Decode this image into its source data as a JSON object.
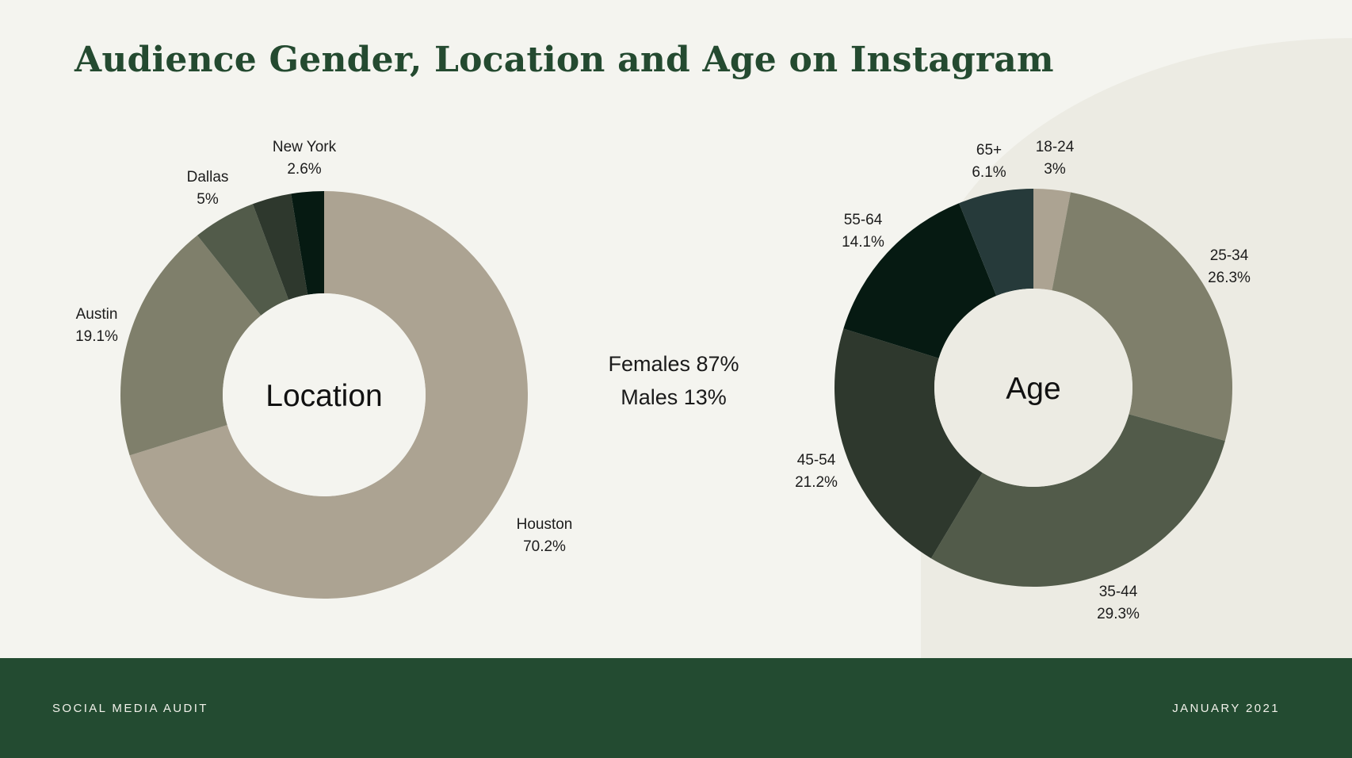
{
  "title": "Audience Gender, Location and Age on Instagram",
  "gender": {
    "female": "Females 87%",
    "male": "Males 13%"
  },
  "footer": {
    "left": "SOCIAL MEDIA AUDIT",
    "right": "JANUARY 2021"
  },
  "colors": {
    "background": "#f4f4ef",
    "accent_arc": "#ecebe3",
    "title": "#244a30",
    "footer": "#234b31"
  },
  "chart_data": [
    {
      "type": "pie",
      "center_label": "Location",
      "slices": [
        {
          "label": "Houston",
          "value_label": "70.2%",
          "value": 70.2,
          "color": "#aca392"
        },
        {
          "label": "Austin",
          "value_label": "19.1%",
          "value": 19.1,
          "color": "#7f7f6b"
        },
        {
          "label": "Dallas",
          "value_label": "5%",
          "value": 5.0,
          "color": "#525b4a"
        },
        {
          "label": "",
          "value_label": "",
          "value": 3.1,
          "color": "#2e382d"
        },
        {
          "label": "New York",
          "value_label": "2.6%",
          "value": 2.6,
          "color": "#061a12"
        }
      ]
    },
    {
      "type": "pie",
      "center_label": "Age",
      "slices": [
        {
          "label": "18-24",
          "value_label": "3%",
          "value": 3.0,
          "color": "#aca392"
        },
        {
          "label": "25-34",
          "value_label": "26.3%",
          "value": 26.3,
          "color": "#7f7f6b"
        },
        {
          "label": "35-44",
          "value_label": "29.3%",
          "value": 29.3,
          "color": "#525b4a"
        },
        {
          "label": "45-54",
          "value_label": "21.2%",
          "value": 21.2,
          "color": "#2e382d"
        },
        {
          "label": "55-64",
          "value_label": "14.1%",
          "value": 14.1,
          "color": "#061a12"
        },
        {
          "label": "65+",
          "value_label": "6.1%",
          "value": 6.1,
          "color": "#263a3a"
        }
      ]
    }
  ]
}
